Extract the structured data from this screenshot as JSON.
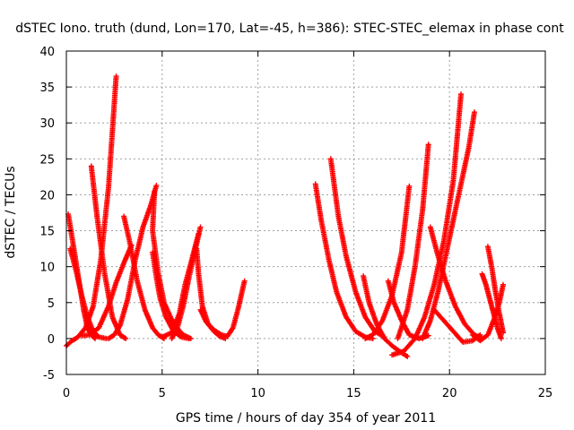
{
  "chart_data": {
    "type": "scatter",
    "title": "dSTEC Iono. truth (dund, Lon=170, Lat=-45, h=386): STEC-STEC_elemax in phase cont",
    "xlabel": "GPS time / hours of day 354 of year 2011",
    "ylabel": "dSTEC  / TECUs",
    "xlim": [
      0,
      25
    ],
    "ylim": [
      -5,
      40
    ],
    "x_ticks": [
      "0",
      "5",
      "10",
      "15",
      "20",
      "25"
    ],
    "y_ticks": [
      "-5",
      "0",
      "5",
      "10",
      "15",
      "20",
      "25",
      "30",
      "35",
      "40"
    ],
    "grid": true,
    "marker": "plus",
    "color": "#ff0000",
    "arcs": [
      {
        "x": [
          0.0,
          0.3,
          0.6,
          1.0,
          1.4,
          1.8,
          2.2,
          2.6
        ],
        "y": [
          -1,
          -0.3,
          0.2,
          1.5,
          4.5,
          11,
          21,
          36.5
        ]
      },
      {
        "x": [
          0.1,
          0.3,
          0.6,
          0.9,
          1.1,
          1.3,
          1.5
        ],
        "y": [
          17.3,
          14,
          9,
          4,
          1.5,
          0.5,
          0
        ]
      },
      {
        "x": [
          0.2,
          0.5,
          0.8,
          1.1,
          1.4,
          1.7,
          2.1
        ],
        "y": [
          12.5,
          9.5,
          6,
          3,
          1,
          0.2,
          0
        ]
      },
      {
        "x": [
          1.3,
          1.6,
          2.0,
          2.4,
          2.8,
          3.1
        ],
        "y": [
          24,
          17,
          9,
          3,
          0.5,
          0
        ]
      },
      {
        "x": [
          0.8,
          1.2,
          1.7,
          2.2,
          2.6,
          3.0,
          3.4
        ],
        "y": [
          0.4,
          0.5,
          1.5,
          4.5,
          7.8,
          10.5,
          13
        ]
      },
      {
        "x": [
          2.2,
          2.5,
          2.8,
          3.2,
          3.6,
          4.0,
          4.4,
          4.7
        ],
        "y": [
          0,
          0.5,
          1.8,
          5.5,
          11,
          15.5,
          18.5,
          21.3
        ]
      },
      {
        "x": [
          3.0,
          3.3,
          3.7,
          4.1,
          4.5,
          4.8,
          5.1
        ],
        "y": [
          17,
          13.5,
          8,
          4,
          1.5,
          0.5,
          0
        ]
      },
      {
        "x": [
          4.5,
          4.7,
          4.9,
          5.2,
          5.6,
          6.0,
          6.4
        ],
        "y": [
          12,
          8.5,
          5.5,
          3,
          1,
          0.2,
          0
        ]
      },
      {
        "x": [
          4.6,
          4.5,
          4.8,
          5.1,
          5.6,
          6.1,
          6.5
        ],
        "y": [
          20.5,
          15,
          9,
          5,
          2,
          0.5,
          0
        ]
      },
      {
        "x": [
          5.0,
          5.5,
          5.9,
          6.2,
          6.6,
          6.9
        ],
        "y": [
          0.2,
          0.8,
          3.5,
          7.5,
          11.5,
          14.6
        ]
      },
      {
        "x": [
          5.5,
          5.8,
          6.1,
          6.4,
          6.7,
          7.0
        ],
        "y": [
          0,
          1.5,
          4.5,
          8.5,
          12,
          15.5
        ]
      },
      {
        "x": [
          6.8,
          6.9,
          7.1,
          7.4,
          7.7,
          8.0,
          8.3
        ],
        "y": [
          12.5,
          9,
          4.5,
          2,
          1,
          0.3,
          0
        ]
      },
      {
        "x": [
          7.0,
          7.3,
          7.7,
          8.1,
          8.4,
          8.7,
          9.0,
          9.3
        ],
        "y": [
          4,
          2.3,
          1.2,
          0.5,
          0.3,
          1.5,
          4.5,
          8
        ]
      },
      {
        "x": [
          13.0,
          13.3,
          13.7,
          14.1,
          14.6,
          15.1,
          15.6,
          16.0
        ],
        "y": [
          21.5,
          16.5,
          11,
          6.5,
          3,
          1,
          0.2,
          0
        ]
      },
      {
        "x": [
          13.8,
          14.2,
          14.6,
          15.1,
          15.6,
          16.1,
          16.6
        ],
        "y": [
          25,
          17,
          11.5,
          6.5,
          3,
          1,
          0.2
        ]
      },
      {
        "x": [
          15.5,
          15.8,
          16.2,
          16.6,
          17.0,
          17.4,
          17.8
        ],
        "y": [
          8.7,
          5,
          2,
          0,
          -1,
          -1.8,
          -2.5
        ]
      },
      {
        "x": [
          15.6,
          16.0,
          16.5,
          17.0,
          17.5,
          17.9
        ],
        "y": [
          0,
          0.5,
          2.5,
          6,
          12,
          21.2
        ]
      },
      {
        "x": [
          16.8,
          17.1,
          17.5,
          17.9,
          18.4,
          18.9
        ],
        "y": [
          8,
          5,
          2.5,
          0.5,
          0,
          0.4
        ]
      },
      {
        "x": [
          17.0,
          17.6,
          18.2,
          18.7,
          19.2,
          19.7,
          20.2,
          20.6
        ],
        "y": [
          -2.3,
          -1.8,
          0,
          3,
          7.5,
          13.5,
          22,
          34
        ]
      },
      {
        "x": [
          17.3,
          17.8,
          18.2,
          18.6,
          18.9
        ],
        "y": [
          0,
          4,
          10,
          18,
          27
        ]
      },
      {
        "x": [
          18.6,
          19.0,
          19.4,
          19.8,
          20.2,
          20.6,
          21.0,
          21.3
        ],
        "y": [
          0,
          2.5,
          6.5,
          11.5,
          16.5,
          21.5,
          26.5,
          31.5
        ]
      },
      {
        "x": [
          19.0,
          19.4,
          19.8,
          20.3,
          20.8,
          21.3,
          21.7
        ],
        "y": [
          15.5,
          11.5,
          8,
          4.5,
          2,
          0.5,
          0
        ]
      },
      {
        "x": [
          19.2,
          19.7,
          20.2,
          20.7,
          21.2,
          21.6
        ],
        "y": [
          4,
          2.5,
          1,
          -0.5,
          -0.3,
          0.5
        ]
      },
      {
        "x": [
          21.7,
          21.9,
          22.1,
          22.3,
          22.5,
          22.7
        ],
        "y": [
          9,
          7.5,
          5.5,
          3.5,
          1.5,
          0
        ]
      },
      {
        "x": [
          22.0,
          22.2,
          22.4,
          22.6,
          22.8
        ],
        "y": [
          12.8,
          10,
          6.5,
          3.5,
          0.8
        ]
      },
      {
        "x": [
          21.2,
          21.6,
          22.0,
          22.3,
          22.6,
          22.8
        ],
        "y": [
          0.5,
          -0.3,
          0.5,
          2.5,
          5,
          7.5
        ]
      }
    ]
  }
}
